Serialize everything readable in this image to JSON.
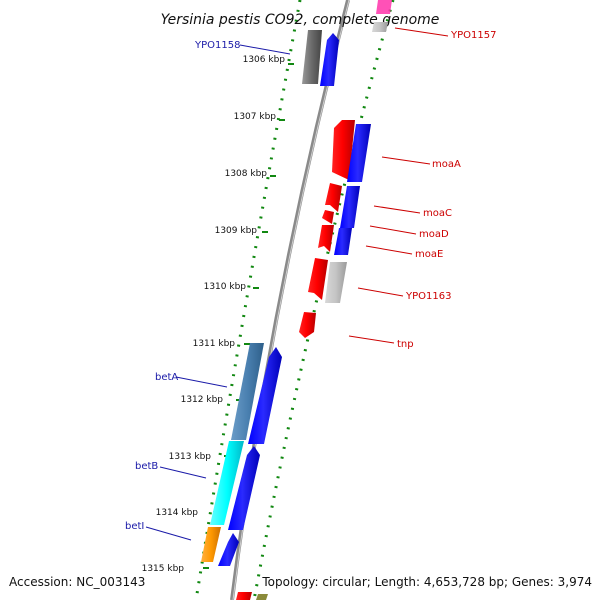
{
  "title": "Yersinia pestis CO92, complete genome",
  "footer": {
    "accession": "Accession: NC_003143",
    "topology": "Topology: circular; Length: 4,653,728 bp; Genes: 3,974"
  },
  "ticks": [
    "1306 kbp",
    "1307 kbp",
    "1308 kbp",
    "1309 kbp",
    "1310 kbp",
    "1311 kbp",
    "1312 kbp",
    "1313 kbp",
    "1314 kbp",
    "1315 kbp"
  ],
  "genes_left": [
    {
      "label": "YPO1158",
      "color": "#1a1aa8"
    },
    {
      "label": "betA",
      "color": "#1a1aa8"
    },
    {
      "label": "betB",
      "color": "#1a1aa8"
    },
    {
      "label": "betI",
      "color": "#1a1aa8"
    }
  ],
  "genes_right": [
    {
      "label": "YPO1157",
      "color": "#cc0000"
    },
    {
      "label": "moaA",
      "color": "#cc0000"
    },
    {
      "label": "moaC",
      "color": "#cc0000"
    },
    {
      "label": "moaD",
      "color": "#cc0000"
    },
    {
      "label": "moaE",
      "color": "#cc0000"
    },
    {
      "label": "YPO1163",
      "color": "#cc0000"
    },
    {
      "label": "tnp",
      "color": "#cc0000"
    }
  ]
}
